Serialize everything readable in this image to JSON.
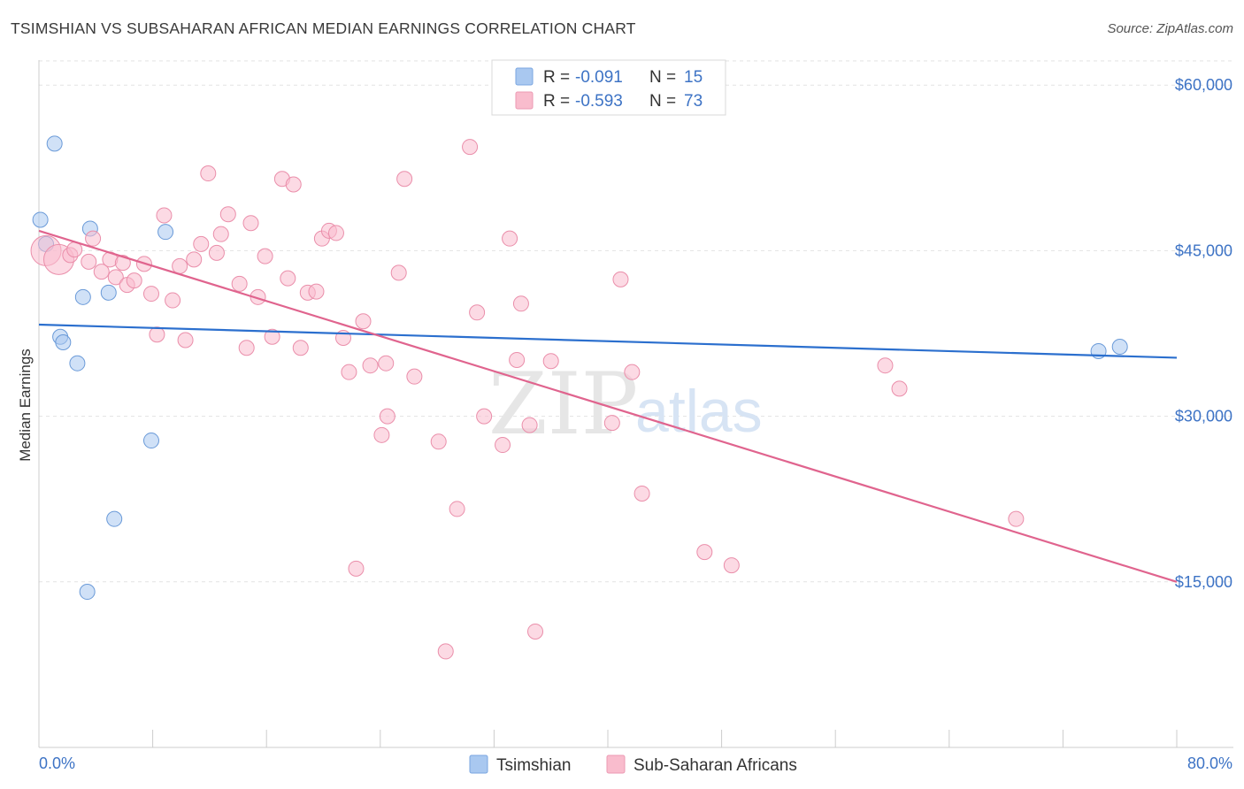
{
  "header": {
    "title": "TSIMSHIAN VS SUBSAHARAN AFRICAN MEDIAN EARNINGS CORRELATION CHART",
    "source": "Source: ZipAtlas.com"
  },
  "watermark": {
    "zip": "ZIP",
    "atlas": "atlas"
  },
  "stats": [
    {
      "r_label": "R =",
      "r_value": "-0.091",
      "n_label": "N =",
      "n_value": "15",
      "color": "#a9c8f0"
    },
    {
      "r_label": "R =",
      "r_value": "-0.593",
      "n_label": "N =",
      "n_value": "73",
      "color": "#f9bccd"
    }
  ],
  "legend": [
    {
      "label": "Tsimshian",
      "color": "#a9c8f0"
    },
    {
      "label": "Sub-Saharan Africans",
      "color": "#f9bccd"
    }
  ],
  "chart_data": {
    "type": "scatter",
    "title": "TSIMSHIAN VS SUBSAHARAN AFRICAN MEDIAN EARNINGS CORRELATION CHART",
    "xlabel": "",
    "ylabel": "Median Earnings",
    "xlim": [
      0,
      80
    ],
    "ylim": [
      0,
      62500
    ],
    "x_tick_labels": [
      "0.0%",
      "80.0%"
    ],
    "y_ticks": [
      15000,
      30000,
      45000,
      60000
    ],
    "y_tick_labels": [
      "$15,000",
      "$30,000",
      "$45,000",
      "$60,000"
    ],
    "grid": true,
    "legend_position": "bottom-center",
    "series": [
      {
        "name": "Tsimshian",
        "color": "#a9c8f0",
        "stroke": "#6a9ad8",
        "trend": {
          "x": [
            0,
            80
          ],
          "y": [
            38300,
            35300
          ],
          "color": "#2b6fce"
        },
        "points": [
          {
            "x": 0.1,
            "y": 47800
          },
          {
            "x": 0.5,
            "y": 45600
          },
          {
            "x": 1.1,
            "y": 54700
          },
          {
            "x": 1.5,
            "y": 37200
          },
          {
            "x": 1.7,
            "y": 36700
          },
          {
            "x": 2.7,
            "y": 34800
          },
          {
            "x": 3.1,
            "y": 40800
          },
          {
            "x": 3.4,
            "y": 14100
          },
          {
            "x": 3.6,
            "y": 47000
          },
          {
            "x": 4.9,
            "y": 41200
          },
          {
            "x": 5.3,
            "y": 20700
          },
          {
            "x": 7.9,
            "y": 27800
          },
          {
            "x": 8.9,
            "y": 46700
          },
          {
            "x": 74.5,
            "y": 35900
          },
          {
            "x": 76.0,
            "y": 36300
          }
        ]
      },
      {
        "name": "Sub-Saharan Africans",
        "color": "#f9bccd",
        "stroke": "#ea8eaa",
        "trend": {
          "x": [
            0,
            80
          ],
          "y": [
            46800,
            15000
          ],
          "color": "#e0648e"
        },
        "points": [
          {
            "x": 0.5,
            "y": 45000,
            "big": true
          },
          {
            "x": 1.4,
            "y": 44200,
            "big": true
          },
          {
            "x": 2.2,
            "y": 44600
          },
          {
            "x": 2.5,
            "y": 45100
          },
          {
            "x": 3.5,
            "y": 44000
          },
          {
            "x": 3.8,
            "y": 46100
          },
          {
            "x": 4.4,
            "y": 43100
          },
          {
            "x": 5.0,
            "y": 44200
          },
          {
            "x": 5.4,
            "y": 42600
          },
          {
            "x": 5.9,
            "y": 43900
          },
          {
            "x": 6.2,
            "y": 41900
          },
          {
            "x": 6.7,
            "y": 42300
          },
          {
            "x": 7.4,
            "y": 43800
          },
          {
            "x": 7.9,
            "y": 41100
          },
          {
            "x": 8.3,
            "y": 37400
          },
          {
            "x": 8.8,
            "y": 48200
          },
          {
            "x": 9.4,
            "y": 40500
          },
          {
            "x": 9.9,
            "y": 43600
          },
          {
            "x": 10.3,
            "y": 36900
          },
          {
            "x": 10.9,
            "y": 44200
          },
          {
            "x": 11.4,
            "y": 45600
          },
          {
            "x": 11.9,
            "y": 52000
          },
          {
            "x": 12.5,
            "y": 44800
          },
          {
            "x": 12.8,
            "y": 46500
          },
          {
            "x": 13.3,
            "y": 48300
          },
          {
            "x": 14.1,
            "y": 42000
          },
          {
            "x": 14.6,
            "y": 36200
          },
          {
            "x": 14.9,
            "y": 47500
          },
          {
            "x": 15.4,
            "y": 40800
          },
          {
            "x": 15.9,
            "y": 44500
          },
          {
            "x": 16.4,
            "y": 37200
          },
          {
            "x": 17.1,
            "y": 51500
          },
          {
            "x": 17.5,
            "y": 42500
          },
          {
            "x": 17.9,
            "y": 51000
          },
          {
            "x": 18.4,
            "y": 36200
          },
          {
            "x": 18.9,
            "y": 41200
          },
          {
            "x": 19.5,
            "y": 41300
          },
          {
            "x": 19.9,
            "y": 46100
          },
          {
            "x": 20.4,
            "y": 46800
          },
          {
            "x": 20.9,
            "y": 46600
          },
          {
            "x": 21.4,
            "y": 37100
          },
          {
            "x": 21.8,
            "y": 34000
          },
          {
            "x": 22.8,
            "y": 38600
          },
          {
            "x": 23.3,
            "y": 34600
          },
          {
            "x": 24.1,
            "y": 28300
          },
          {
            "x": 24.5,
            "y": 30000
          },
          {
            "x": 25.3,
            "y": 43000
          },
          {
            "x": 25.7,
            "y": 51500
          },
          {
            "x": 26.4,
            "y": 33600
          },
          {
            "x": 28.1,
            "y": 27700
          },
          {
            "x": 28.6,
            "y": 8700
          },
          {
            "x": 29.4,
            "y": 21600
          },
          {
            "x": 30.3,
            "y": 54400
          },
          {
            "x": 30.8,
            "y": 39400
          },
          {
            "x": 31.3,
            "y": 30000
          },
          {
            "x": 32.6,
            "y": 27400
          },
          {
            "x": 33.1,
            "y": 46100
          },
          {
            "x": 33.6,
            "y": 35100
          },
          {
            "x": 33.9,
            "y": 40200
          },
          {
            "x": 34.5,
            "y": 29200
          },
          {
            "x": 34.9,
            "y": 10500
          },
          {
            "x": 40.3,
            "y": 29400
          },
          {
            "x": 40.9,
            "y": 42400
          },
          {
            "x": 41.7,
            "y": 34000
          },
          {
            "x": 42.4,
            "y": 23000
          },
          {
            "x": 46.8,
            "y": 17700
          },
          {
            "x": 48.7,
            "y": 16500
          },
          {
            "x": 59.5,
            "y": 34600
          },
          {
            "x": 60.5,
            "y": 32500
          },
          {
            "x": 68.7,
            "y": 20700
          },
          {
            "x": 22.3,
            "y": 16200
          },
          {
            "x": 24.4,
            "y": 34800
          },
          {
            "x": 36.0,
            "y": 35000
          }
        ]
      }
    ]
  }
}
